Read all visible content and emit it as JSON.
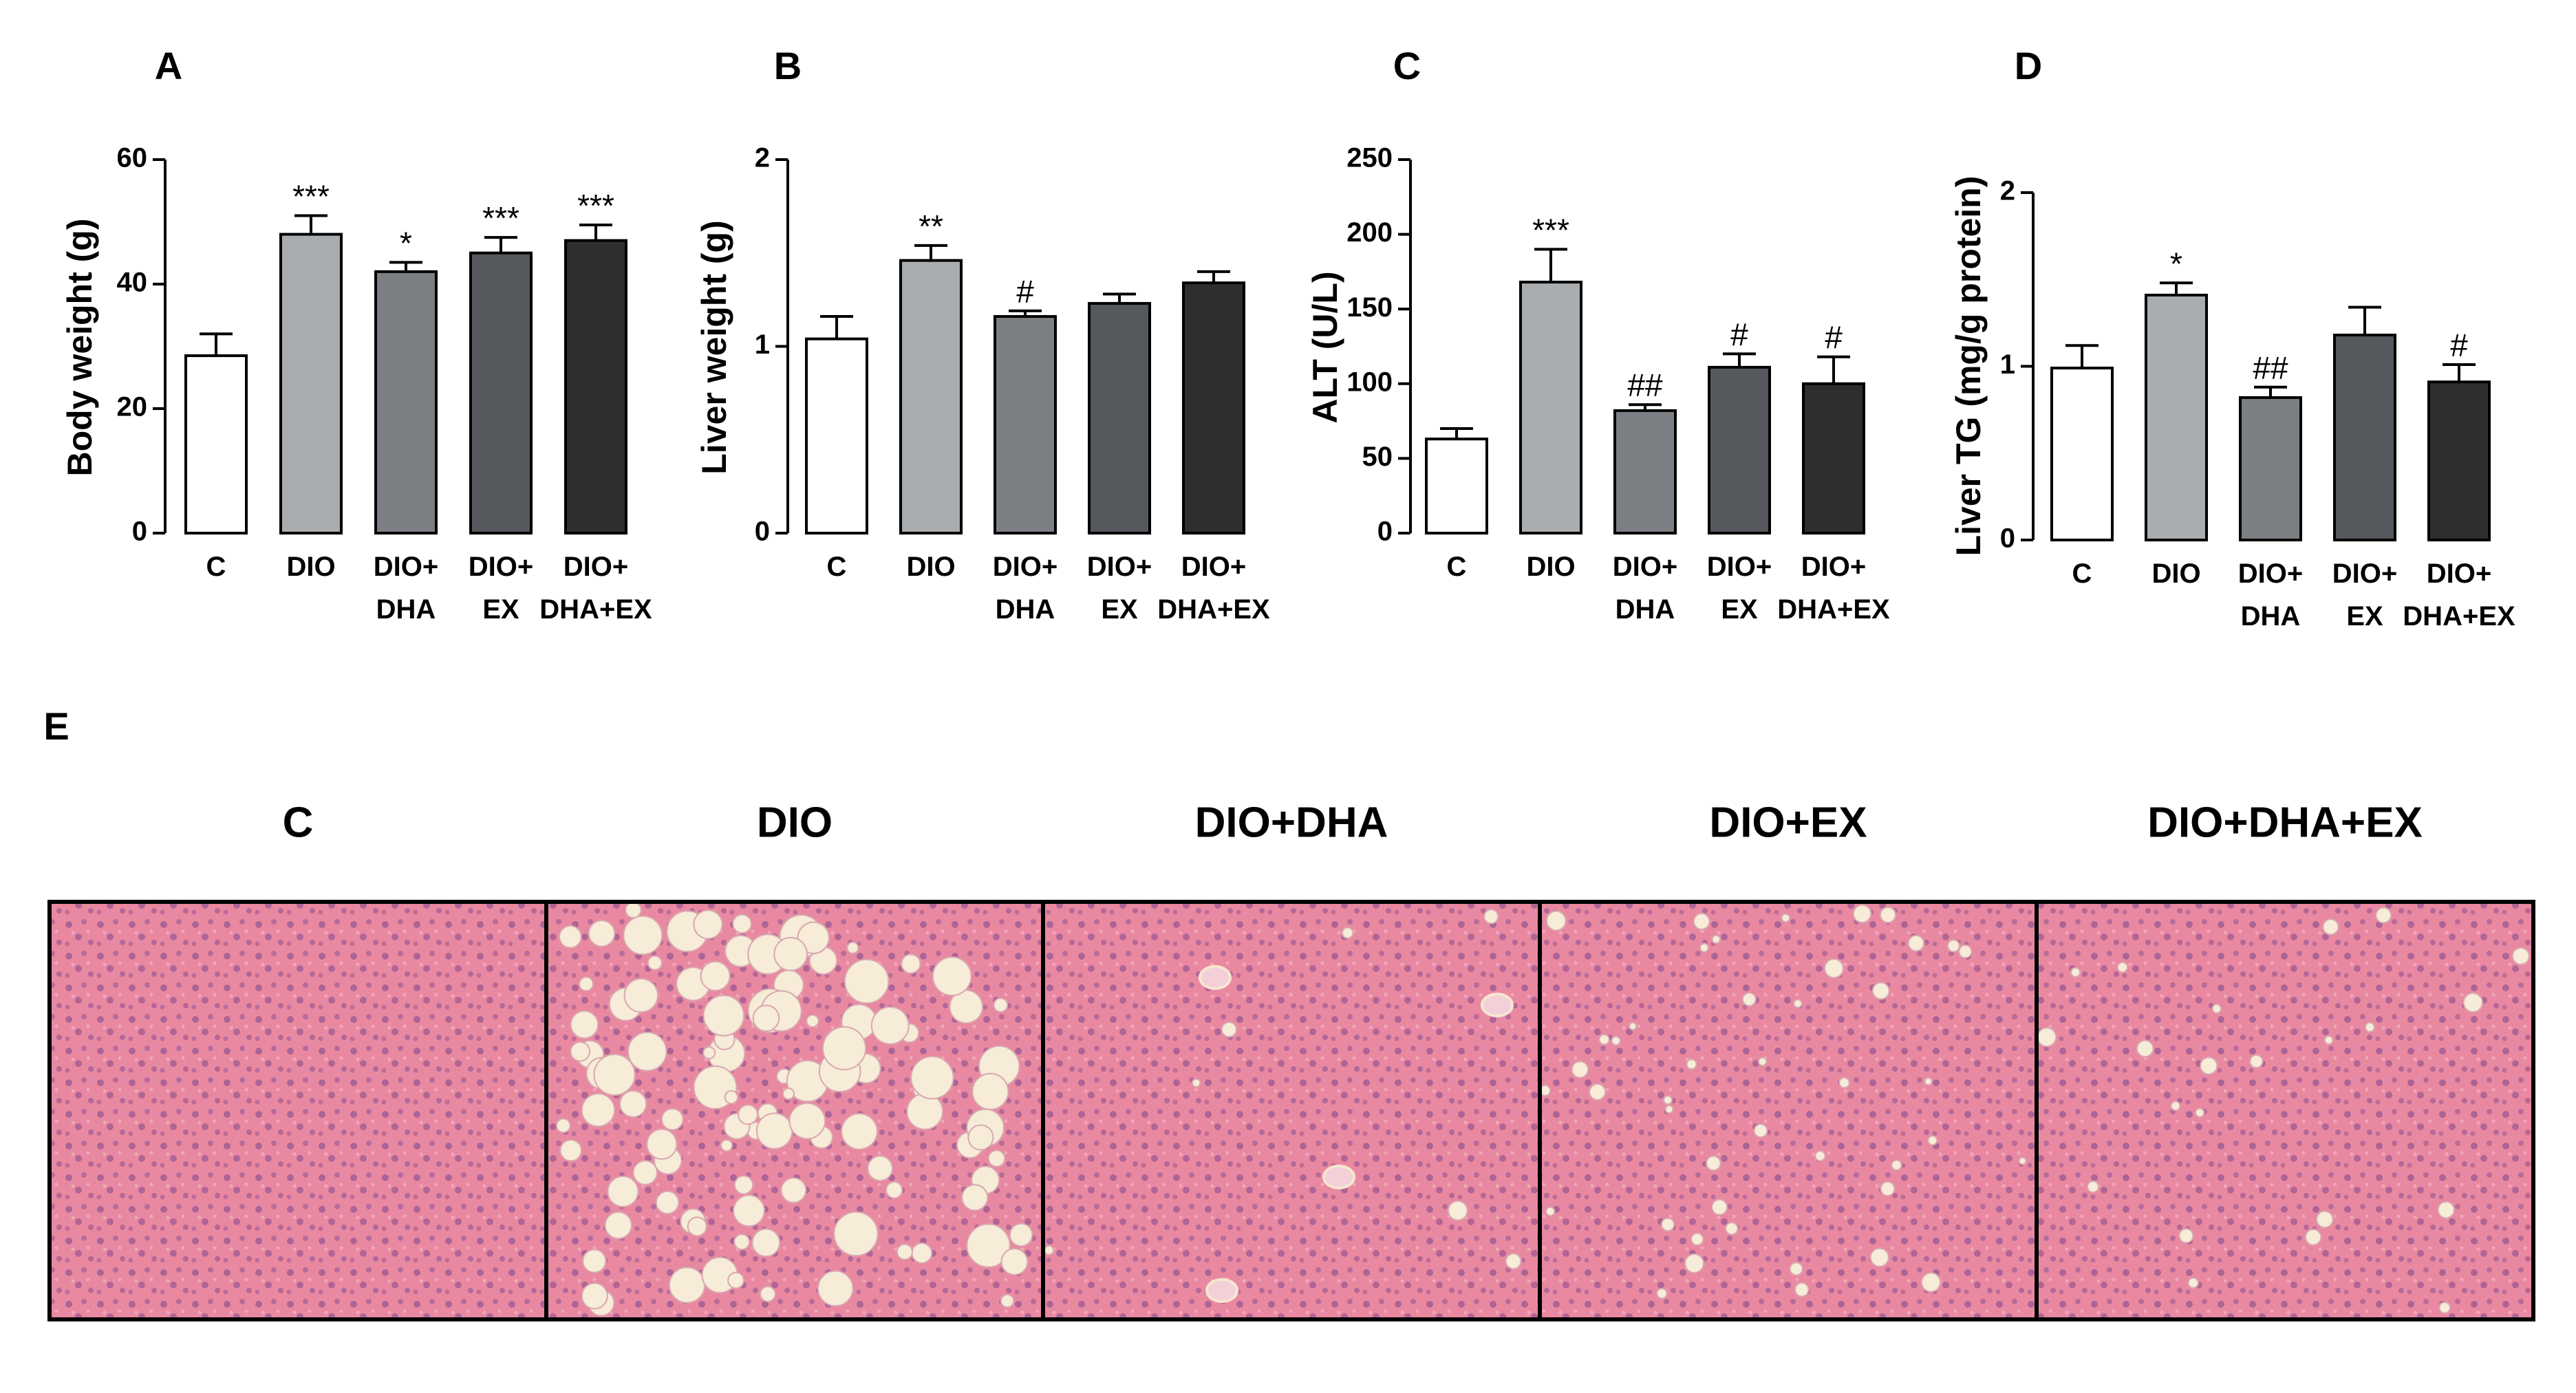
{
  "chart_data": [
    {
      "type": "bar",
      "panel": "A",
      "ylabel": "Body weight (g)",
      "ylim": [
        0,
        60
      ],
      "yticks": [
        0,
        20,
        40,
        60
      ],
      "categories": [
        [
          "C"
        ],
        [
          "DIO"
        ],
        [
          "DIO+",
          "DHA"
        ],
        [
          "DIO+",
          "EX"
        ],
        [
          "DIO+",
          "DHA+EX"
        ]
      ],
      "values": [
        28.5,
        48,
        42,
        45,
        47
      ],
      "errors": [
        3.5,
        3,
        1.5,
        2.5,
        2.5
      ],
      "annotations": [
        "",
        "***",
        "*",
        "***",
        "***"
      ],
      "colors": [
        "#ffffff",
        "#a9adb0",
        "#7b7f84",
        "#55585c",
        "#2e2e2e"
      ]
    },
    {
      "type": "bar",
      "panel": "B",
      "ylabel": "Liver weight (g)",
      "ylim": [
        0,
        2
      ],
      "yticks": [
        0,
        1,
        2
      ],
      "categories": [
        [
          "C"
        ],
        [
          "DIO"
        ],
        [
          "DIO+",
          "DHA"
        ],
        [
          "DIO+",
          "EX"
        ],
        [
          "DIO+",
          "DHA+EX"
        ]
      ],
      "values": [
        1.04,
        1.46,
        1.16,
        1.23,
        1.34
      ],
      "errors": [
        0.12,
        0.08,
        0.03,
        0.05,
        0.06
      ],
      "annotations": [
        "",
        "**",
        "#",
        "",
        ""
      ],
      "colors": [
        "#ffffff",
        "#a9adb0",
        "#7b7f84",
        "#55585c",
        "#2e2e2e"
      ]
    },
    {
      "type": "bar",
      "panel": "C",
      "ylabel": "ALT (U/L)",
      "ylim": [
        0,
        250
      ],
      "yticks": [
        0,
        50,
        100,
        150,
        200,
        250
      ],
      "categories": [
        [
          "C"
        ],
        [
          "DIO"
        ],
        [
          "DIO+",
          "DHA"
        ],
        [
          "DIO+",
          "EX"
        ],
        [
          "DIO+",
          "DHA+EX"
        ]
      ],
      "values": [
        63,
        168,
        82,
        111,
        100
      ],
      "errors": [
        7,
        22,
        4,
        9,
        18
      ],
      "annotations": [
        "",
        "***",
        "##",
        "#",
        "#"
      ],
      "colors": [
        "#ffffff",
        "#a9adb0",
        "#7b7f84",
        "#55585c",
        "#2e2e2e"
      ]
    },
    {
      "type": "bar",
      "panel": "D",
      "ylabel": "Liver TG (mg/g protein)",
      "ylim": [
        0,
        2
      ],
      "yticks": [
        0,
        1,
        2
      ],
      "categories": [
        [
          "C"
        ],
        [
          "DIO"
        ],
        [
          "DIO+",
          "DHA"
        ],
        [
          "DIO+",
          "EX"
        ],
        [
          "DIO+",
          "DHA+EX"
        ]
      ],
      "values": [
        0.99,
        1.41,
        0.82,
        1.18,
        0.91
      ],
      "errors": [
        0.13,
        0.07,
        0.06,
        0.16,
        0.1
      ],
      "annotations": [
        "",
        "*",
        "##",
        "",
        "#"
      ],
      "colors": [
        "#ffffff",
        "#a9adb0",
        "#7b7f84",
        "#55585c",
        "#2e2e2e"
      ]
    }
  ],
  "histology": {
    "panel": "E",
    "titles": [
      "C",
      "DIO",
      "DIO+DHA",
      "DIO+EX",
      "DIO+DHA+EX"
    ],
    "tissue_color": "#e8849e",
    "vacuole_density": [
      0,
      1,
      0.06,
      0.4,
      0.2
    ]
  }
}
